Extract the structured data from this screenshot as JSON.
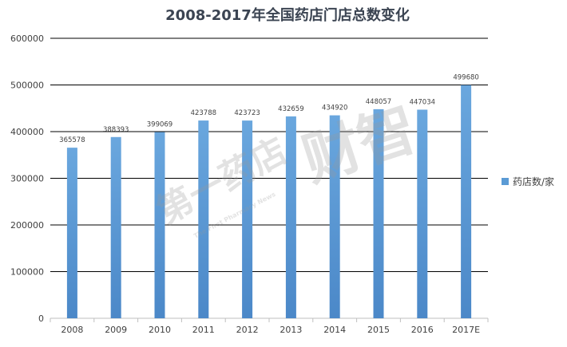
{
  "chart_data": {
    "type": "bar",
    "title": "2008-2017年全国药店门店总数变化",
    "categories": [
      "2008",
      "2009",
      "2010",
      "2011",
      "2012",
      "2013",
      "2014",
      "2015",
      "2016",
      "2017E"
    ],
    "series": [
      {
        "name": "药店数/家",
        "values": [
          365578,
          388393,
          399069,
          423788,
          423723,
          432659,
          434920,
          448057,
          447034,
          499680
        ]
      }
    ],
    "ylim": [
      0,
      600000
    ],
    "yticks": [
      0,
      100000,
      200000,
      300000,
      400000,
      500000,
      600000
    ],
    "grid": true,
    "legend_position": "right",
    "bar_color": "#5b9bd5"
  },
  "watermark": {
    "text_main": "第一药店",
    "text_brand": "财智",
    "text_sub": "The First Pharmacy News"
  }
}
